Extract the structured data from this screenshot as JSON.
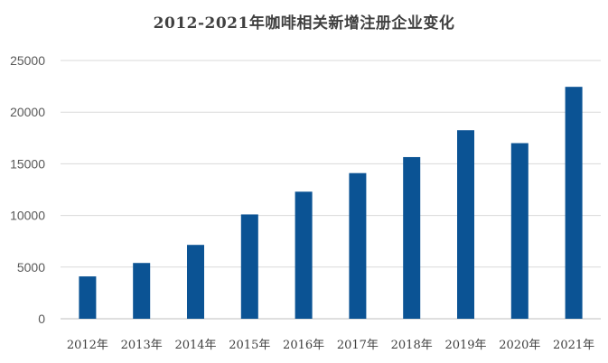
{
  "chart_data": {
    "type": "bar",
    "title": "2012-2021年咖啡相关新增注册企业变化",
    "categories": [
      "2012年",
      "2013年",
      "2014年",
      "2015年",
      "2016年",
      "2017年",
      "2018年",
      "2019年",
      "2020年",
      "2021年"
    ],
    "values": [
      4100,
      5400,
      7150,
      10100,
      12300,
      14100,
      15650,
      18250,
      17000,
      22450
    ],
    "xlabel": "",
    "ylabel": "",
    "ylim": [
      0,
      25000
    ],
    "yticks": [
      "0",
      "5000",
      "10000",
      "15000",
      "20000",
      "25000"
    ],
    "grid": true,
    "legend": "none",
    "bar_color": "#0B5394",
    "grid_color": "#D9D9D9"
  }
}
